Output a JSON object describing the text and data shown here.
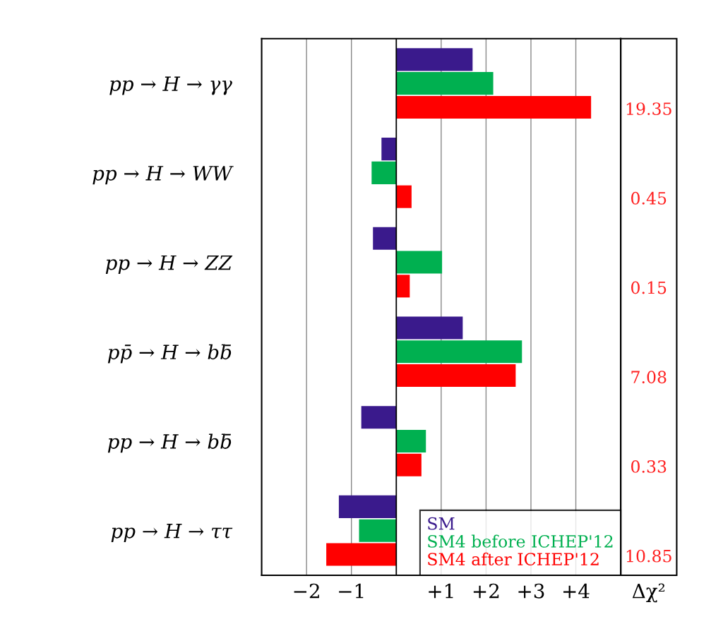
{
  "chart_data": {
    "type": "bar",
    "orientation": "horizontal",
    "categories": [
      "pp → H → γγ",
      "pp → H → WW",
      "pp → H → ZZ",
      "pp̄ → H → bb̄",
      "pp → H → bb̄",
      "pp → H → ττ"
    ],
    "series": [
      {
        "name": "SM",
        "color": "#3a1a8c",
        "values": [
          1.7,
          -0.33,
          -0.52,
          1.48,
          -0.78,
          -1.28
        ]
      },
      {
        "name": "SM4 before ICHEP'12",
        "color": "#00b050",
        "values": [
          2.16,
          -0.55,
          1.02,
          2.8,
          0.66,
          -0.83
        ]
      },
      {
        "name": "SM4 after ICHEP'12",
        "color": "#ff0000",
        "values": [
          4.34,
          0.34,
          0.3,
          2.66,
          0.56,
          -1.56
        ]
      }
    ],
    "xlim": [
      -3,
      5
    ],
    "xticks": [
      {
        "value": -2,
        "label": "−2"
      },
      {
        "value": -1,
        "label": "−1"
      },
      {
        "value": 1,
        "label": "+1"
      },
      {
        "value": 2,
        "label": "+2"
      },
      {
        "value": 3,
        "label": "+3"
      },
      {
        "value": 4,
        "label": "+4"
      }
    ],
    "grid": "x",
    "legend": "bottom right",
    "ref_lines": [
      {
        "axis": "x",
        "value": 0,
        "color": "#000000"
      }
    ],
    "annotations": [
      "19.35",
      "0.45",
      "0.15",
      "7.08",
      "0.33",
      "10.85",
      "Δχ²"
    ]
  }
}
